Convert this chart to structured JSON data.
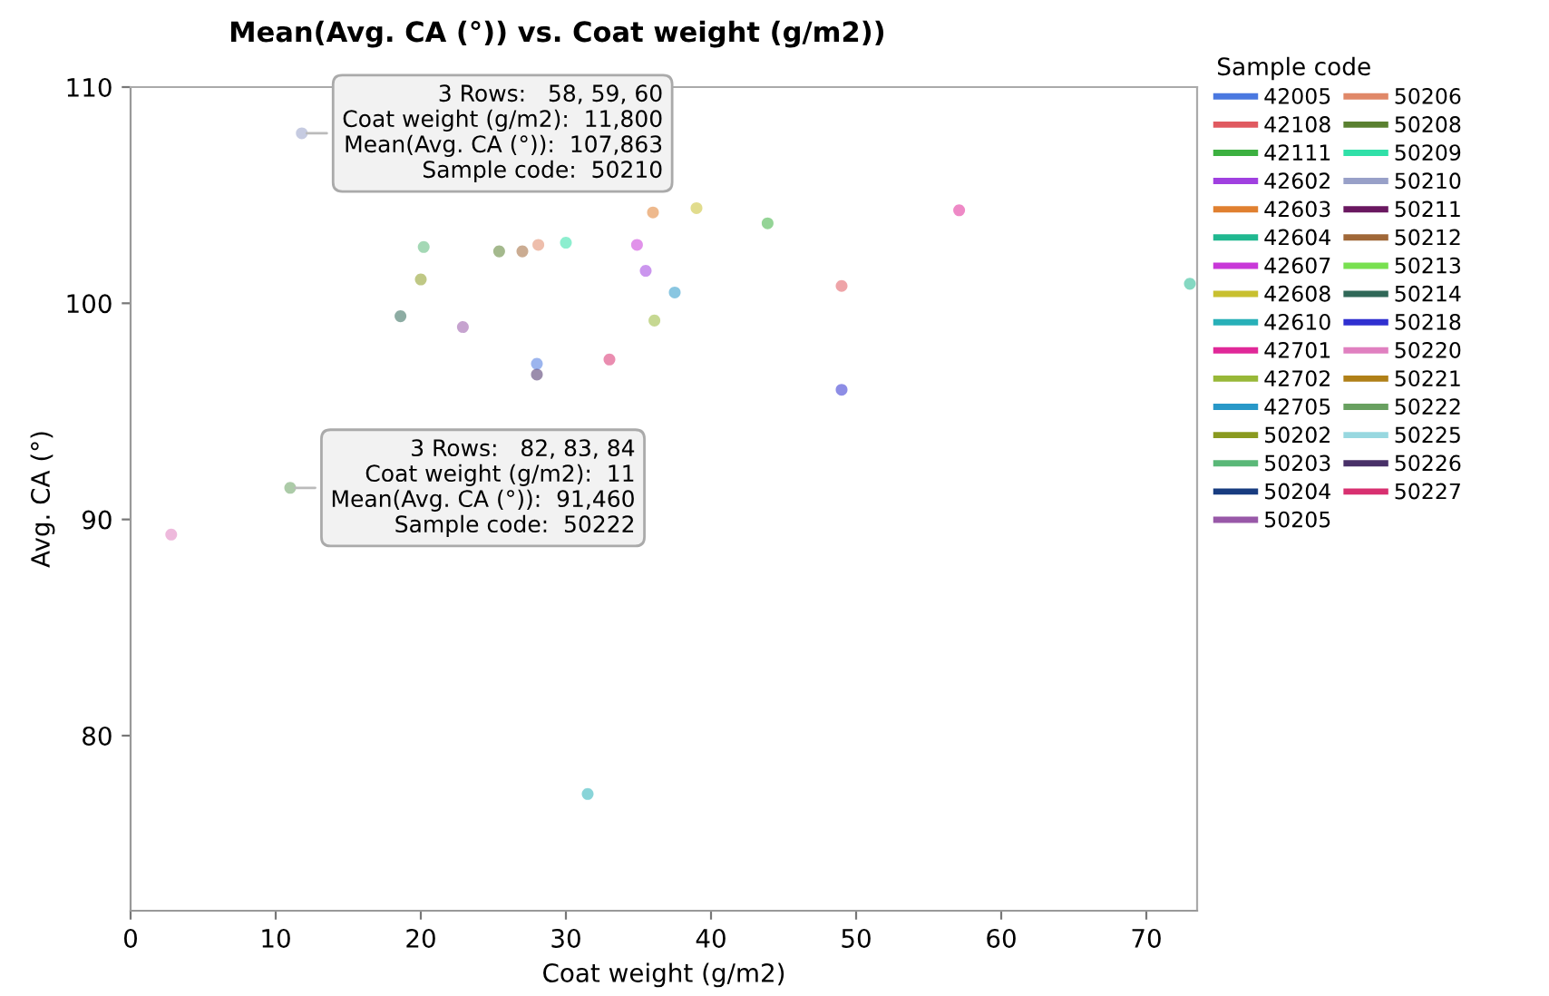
{
  "chart_data": {
    "type": "scatter",
    "title": "Mean(Avg. CA (°)) vs. Coat weight (g/m2))",
    "xlabel": "Coat weight (g/m2)",
    "ylabel": "Avg. CA (°)",
    "legend_title": "Sample code",
    "xlim": [
      0,
      73.5
    ],
    "xticks": [
      0,
      10,
      20,
      30,
      40,
      50,
      60,
      70
    ],
    "ylim": [
      71.9,
      110
    ],
    "yticks": [
      80,
      90,
      100,
      110
    ],
    "grid": false,
    "legend": "right",
    "marker": "circle",
    "series": [
      {
        "name": "42005",
        "color": "#4a78e0",
        "x": [
          28.0
        ],
        "values": [
          97.2
        ]
      },
      {
        "name": "42108",
        "color": "#e05a60",
        "x": [
          49.0
        ],
        "values": [
          100.8
        ]
      },
      {
        "name": "42111",
        "color": "#3cb040",
        "x": [
          43.9
        ],
        "values": [
          103.7
        ]
      },
      {
        "name": "42602",
        "color": "#a040e0",
        "x": [
          35.5
        ],
        "values": [
          101.5
        ]
      },
      {
        "name": "42603",
        "color": "#e08030",
        "x": [
          36.0
        ],
        "values": [
          104.2
        ]
      },
      {
        "name": "42604",
        "color": "#20b890",
        "x": [
          73.0
        ],
        "values": [
          100.9
        ]
      },
      {
        "name": "42607",
        "color": "#c838d8",
        "x": [
          34.9
        ],
        "values": [
          102.7
        ]
      },
      {
        "name": "42608",
        "color": "#c8c030",
        "x": [
          39.0
        ],
        "values": [
          104.4
        ]
      },
      {
        "name": "42610",
        "color": "#28b0b8",
        "x": [
          31.5
        ],
        "values": [
          77.3
        ]
      },
      {
        "name": "42701",
        "color": "#e02898",
        "x": [
          57.1
        ],
        "values": [
          104.3
        ]
      },
      {
        "name": "42702",
        "color": "#98b838",
        "x": [
          36.1
        ],
        "values": [
          99.2
        ]
      },
      {
        "name": "42705",
        "color": "#2898c8",
        "x": [
          37.5
        ],
        "values": [
          100.5
        ]
      },
      {
        "name": "50202",
        "color": "#8a9a20",
        "x": [
          20.0
        ],
        "values": [
          101.1
        ]
      },
      {
        "name": "50203",
        "color": "#5ab878",
        "x": [
          20.2
        ],
        "values": [
          102.6
        ]
      },
      {
        "name": "50204",
        "color": "#183c80"
      },
      {
        "name": "50205",
        "color": "#9858a8",
        "x": [
          22.9
        ],
        "values": [
          98.9
        ]
      },
      {
        "name": "50206",
        "color": "#e08868",
        "x": [
          28.1
        ],
        "values": [
          102.7
        ]
      },
      {
        "name": "50208",
        "color": "#5a8030",
        "x": [
          25.4
        ],
        "values": [
          102.4
        ]
      },
      {
        "name": "50209",
        "color": "#30e0a8",
        "x": [
          30.0
        ],
        "values": [
          102.8
        ]
      },
      {
        "name": "50210",
        "color": "#98a0c8",
        "x": [
          11.8
        ],
        "values": [
          107.863
        ]
      },
      {
        "name": "50211",
        "color": "#6a1860"
      },
      {
        "name": "50212",
        "color": "#a06838",
        "x": [
          27.0
        ],
        "values": [
          102.4
        ]
      },
      {
        "name": "50213",
        "color": "#78e050"
      },
      {
        "name": "50214",
        "color": "#306858",
        "x": [
          18.6
        ],
        "values": [
          99.4
        ]
      },
      {
        "name": "50218",
        "color": "#3030d0",
        "x": [
          49.0
        ],
        "values": [
          96.0
        ]
      },
      {
        "name": "50220",
        "color": "#e080c0",
        "x": [
          2.8
        ],
        "values": [
          89.3
        ]
      },
      {
        "name": "50221",
        "color": "#b08018"
      },
      {
        "name": "50222",
        "color": "#68a060",
        "x": [
          11.0
        ],
        "values": [
          91.46
        ]
      },
      {
        "name": "50225",
        "color": "#98d8e0"
      },
      {
        "name": "50226",
        "color": "#483068",
        "x": [
          28.0
        ],
        "values": [
          96.7
        ]
      },
      {
        "name": "50227",
        "color": "#d83070",
        "x": [
          33.0
        ],
        "values": [
          97.4
        ]
      }
    ],
    "annotations": [
      {
        "text": "3 Rows:   58, 59, 60\nCoat weight (g/m2):  11,800\nMean(Avg. CA (°)):  107,863\nSample code:  50210",
        "x": 11.8,
        "y": 107.863
      },
      {
        "text": "3 Rows:   82, 83, 84\nCoat weight (g/m2):  11\nMean(Avg. CA (°)):  91,460\nSample code:  50222",
        "x": 11.0,
        "y": 91.46
      }
    ]
  }
}
